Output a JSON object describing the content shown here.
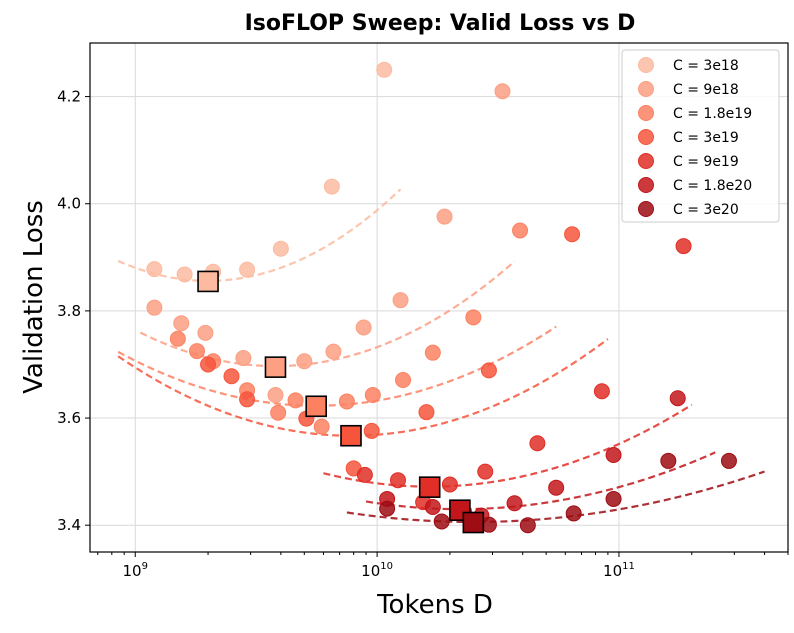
{
  "chart_data": {
    "type": "scatter",
    "title": "IsoFLOP Sweep: Valid Loss vs D",
    "xlabel": "Tokens D",
    "ylabel": "Validation Loss",
    "xscale": "log",
    "xlim": [
      650000000,
      500000000000
    ],
    "ylim": [
      3.35,
      4.3
    ],
    "grid": true,
    "legend_position": "top-right",
    "yticks": [
      {
        "value": 3.4,
        "label": "3.4"
      },
      {
        "value": 3.6,
        "label": "3.6"
      },
      {
        "value": 3.8,
        "label": "3.8"
      },
      {
        "value": 4.0,
        "label": "4.0"
      },
      {
        "value": 4.2,
        "label": "4.2"
      }
    ],
    "xticks": [
      {
        "value": 1000000000,
        "base": "10",
        "exp": "9"
      },
      {
        "value": 10000000000,
        "base": "10",
        "exp": "10"
      },
      {
        "value": 100000000000,
        "base": "10",
        "exp": "11"
      }
    ],
    "series": [
      {
        "name": "C = 3e18",
        "color": "#fcbba1",
        "points": [
          [
            1200000000,
            3.878
          ],
          [
            1600000000,
            3.868
          ],
          [
            2100000000,
            3.873
          ],
          [
            2900000000,
            3.877
          ],
          [
            4000000000,
            3.916
          ],
          [
            6500000000,
            4.032
          ],
          [
            10700000000,
            4.25
          ]
        ],
        "optimum": [
          2000000000,
          3.855
        ],
        "fit": {
          "a": 3.856,
          "b": 0.27,
          "x0": 2000000000,
          "xmin": 850000000,
          "xmax": 12500000000
        }
      },
      {
        "name": "C = 9e18",
        "color": "#fc9f82",
        "points": [
          [
            1200000000,
            3.806
          ],
          [
            1550000000,
            3.777
          ],
          [
            1950000000,
            3.759
          ],
          [
            2800000000,
            3.712
          ],
          [
            3800000000,
            3.643
          ],
          [
            5000000000,
            3.706
          ],
          [
            6600000000,
            3.724
          ],
          [
            8800000000,
            3.769
          ],
          [
            12500000000,
            3.82
          ],
          [
            19000000000,
            3.976
          ],
          [
            33000000000,
            4.21
          ]
        ],
        "optimum": [
          3800000000,
          3.695
        ],
        "fit": {
          "a": 3.697,
          "b": 0.2,
          "x0": 3800000000,
          "xmin": 1050000000,
          "xmax": 37000000000
        }
      },
      {
        "name": "C = 1.8e19",
        "color": "#fc8161",
        "points": [
          [
            1500000000,
            3.748
          ],
          [
            1800000000,
            3.725
          ],
          [
            2100000000,
            3.706
          ],
          [
            2900000000,
            3.652
          ],
          [
            3900000000,
            3.61
          ],
          [
            4600000000,
            3.633
          ],
          [
            5900000000,
            3.584
          ],
          [
            7500000000,
            3.631
          ],
          [
            9600000000,
            3.643
          ],
          [
            12800000000,
            3.671
          ],
          [
            17000000000,
            3.722
          ],
          [
            25000000000,
            3.788
          ],
          [
            39000000000,
            3.95
          ]
        ],
        "optimum": [
          5600000000,
          3.622
        ],
        "fit": {
          "a": 3.623,
          "b": 0.15,
          "x0": 5600000000,
          "xmin": 850000000,
          "xmax": 55000000000
        }
      },
      {
        "name": "C = 3e19",
        "color": "#f6553c",
        "points": [
          [
            2000000000,
            3.7
          ],
          [
            2500000000,
            3.678
          ],
          [
            2900000000,
            3.635
          ],
          [
            5100000000,
            3.599
          ],
          [
            8000000000,
            3.506
          ],
          [
            9500000000,
            3.576
          ],
          [
            16000000000,
            3.611
          ],
          [
            29000000000,
            3.689
          ],
          [
            64000000000,
            3.943
          ]
        ],
        "optimum": [
          7800000000,
          3.567
        ],
        "fit": {
          "a": 3.567,
          "b": 0.16,
          "x0": 7800000000,
          "xmin": 850000000,
          "xmax": 90000000000
        }
      },
      {
        "name": "C = 9e19",
        "color": "#e12e27",
        "points": [
          [
            8900000000,
            3.494
          ],
          [
            12200000000,
            3.484
          ],
          [
            15500000000,
            3.443
          ],
          [
            20000000000,
            3.476
          ],
          [
            28000000000,
            3.5
          ],
          [
            46000000000,
            3.553
          ],
          [
            85000000000,
            3.65
          ],
          [
            185000000000,
            3.921
          ]
        ],
        "optimum": [
          16500000000,
          3.471
        ],
        "fit": {
          "a": 3.472,
          "b": 0.13,
          "x0": 16500000000,
          "xmin": 6000000000,
          "xmax": 200000000000
        }
      },
      {
        "name": "C = 1.8e20",
        "color": "#c2161b",
        "points": [
          [
            11000000000,
            3.449
          ],
          [
            17000000000,
            3.434
          ],
          [
            23000000000,
            3.421
          ],
          [
            27000000000,
            3.418
          ],
          [
            37000000000,
            3.441
          ],
          [
            55000000000,
            3.47
          ],
          [
            95000000000,
            3.531
          ],
          [
            175000000000,
            3.637
          ]
        ],
        "optimum": [
          22000000000,
          3.428
        ],
        "fit": {
          "a": 3.43,
          "b": 0.095,
          "x0": 22000000000,
          "xmin": 9000000000,
          "xmax": 250000000000
        }
      },
      {
        "name": "C = 3e20",
        "color": "#9e0d14",
        "points": [
          [
            11000000000,
            3.431
          ],
          [
            18500000000,
            3.407
          ],
          [
            29000000000,
            3.401
          ],
          [
            42000000000,
            3.4
          ],
          [
            65000000000,
            3.422
          ],
          [
            95000000000,
            3.449
          ],
          [
            160000000000,
            3.52
          ],
          [
            285000000000,
            3.52
          ]
        ],
        "optimum": [
          25000000000,
          3.405
        ],
        "fit": {
          "a": 3.406,
          "b": 0.065,
          "x0": 25000000000,
          "xmin": 7500000000,
          "xmax": 400000000000
        }
      }
    ]
  }
}
